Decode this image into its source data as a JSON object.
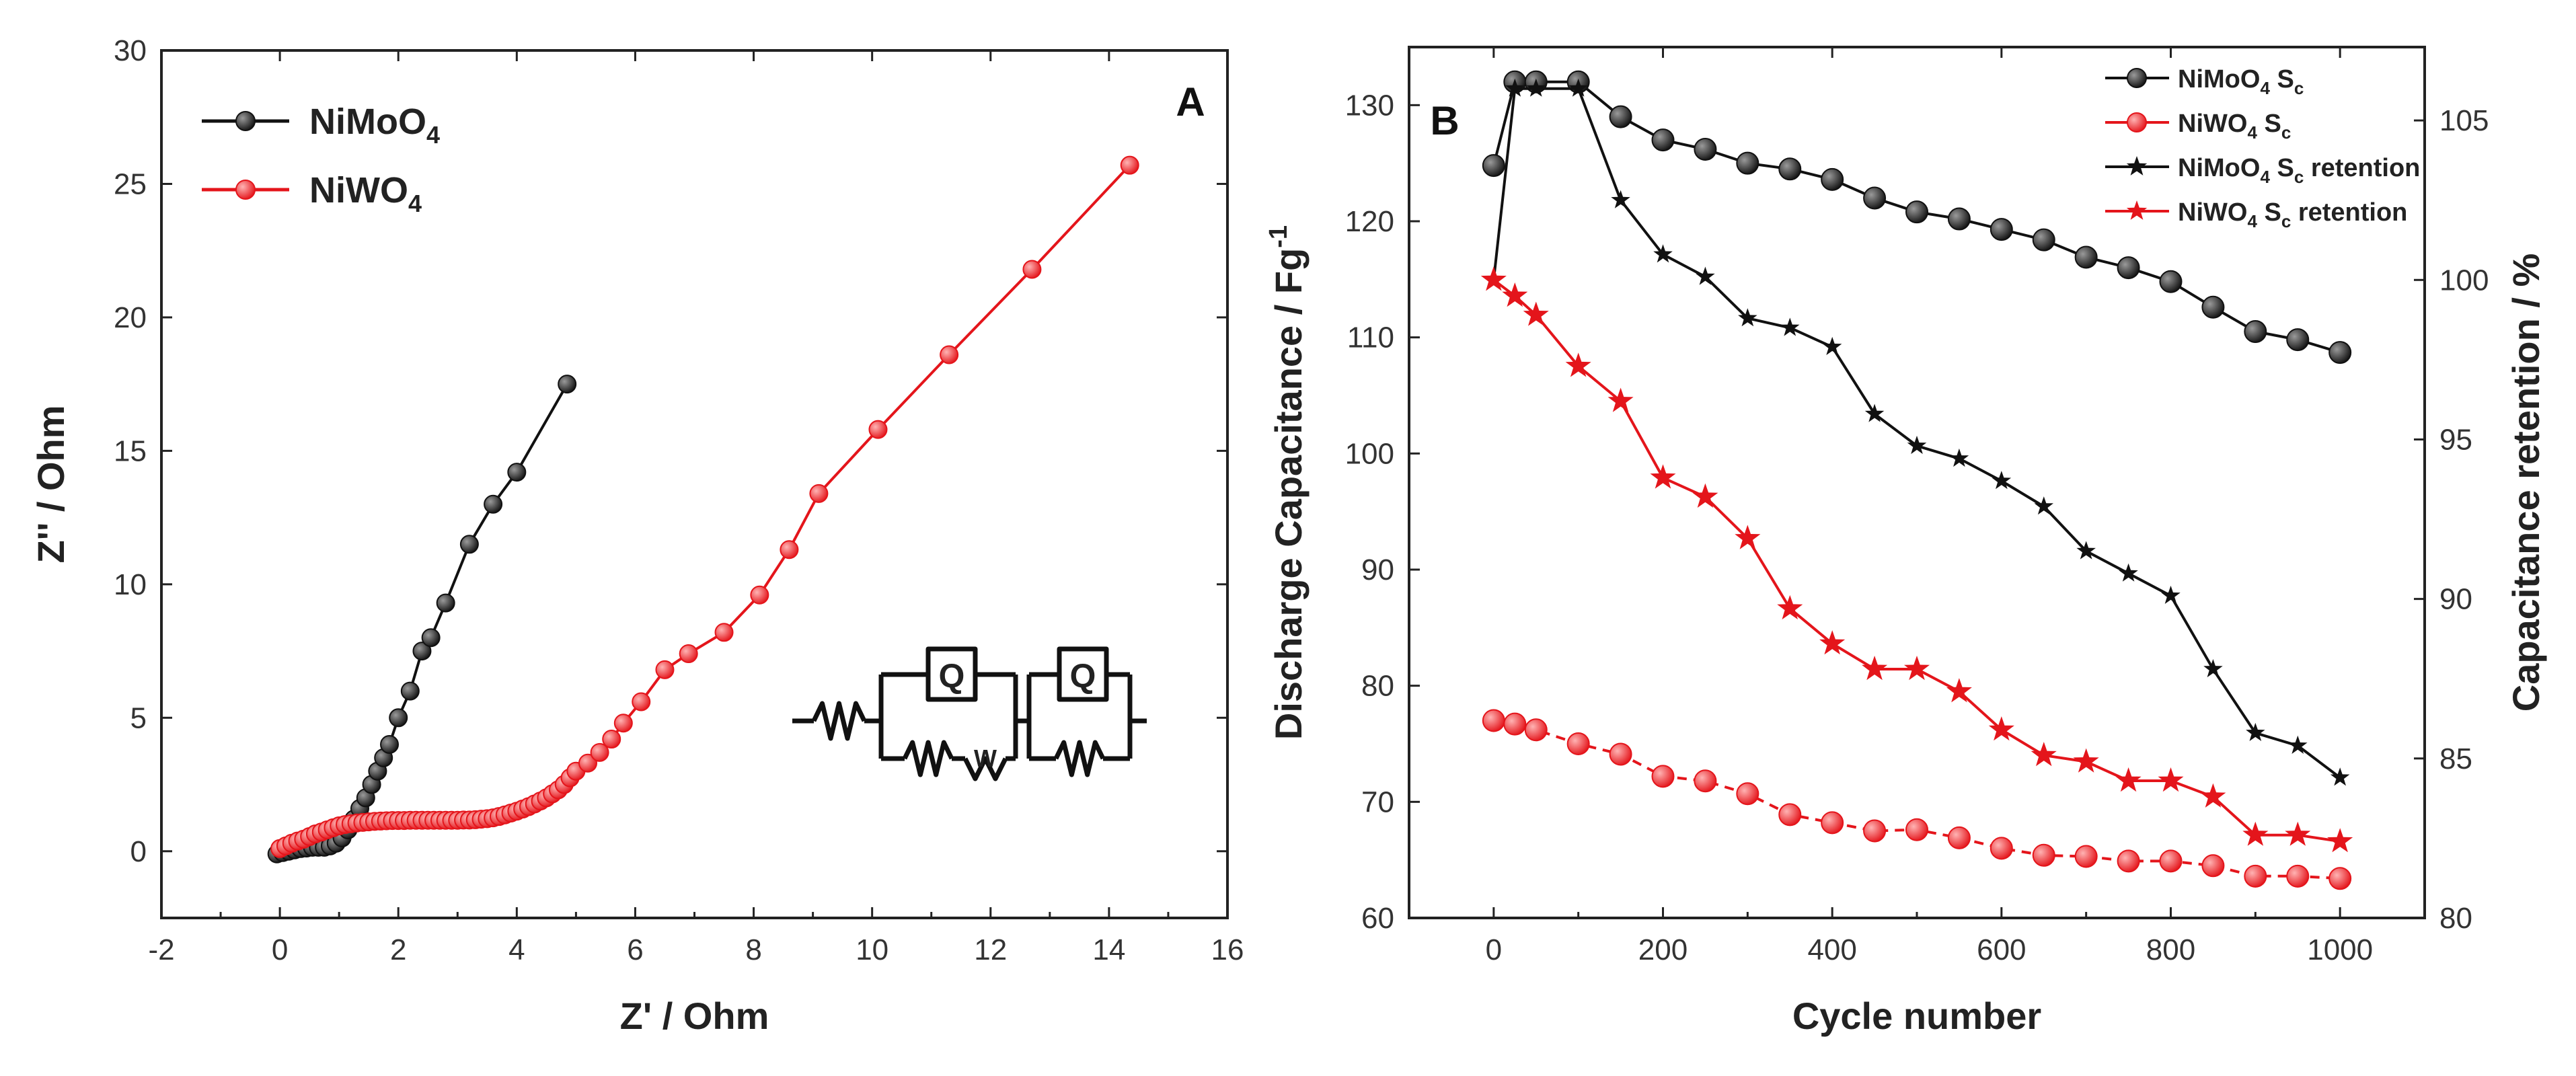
{
  "chart_data": [
    {
      "id": "A",
      "type": "line",
      "panel_label": "A",
      "xlabel": "Z' / Ohm",
      "ylabel": "Z'' / Ohm",
      "xlim": [
        -2,
        16
      ],
      "ylim": [
        -2.5,
        30
      ],
      "xticks": [
        "-2",
        "0",
        "2",
        "4",
        "6",
        "8",
        "10",
        "12",
        "14",
        "16"
      ],
      "yticks": [
        "0",
        "5",
        "10",
        "15",
        "20",
        "25",
        "30"
      ],
      "legend": {
        "placement": "top-left"
      },
      "inset": {
        "description": "equivalent circuit",
        "labels": [
          "Q",
          "W",
          "Q"
        ]
      },
      "series": [
        {
          "name": "NiMoO4",
          "name_main": "NiMoO",
          "name_sub": "4",
          "color": "#111111",
          "x": [
            -0.05,
            0.05,
            0.15,
            0.25,
            0.35,
            0.45,
            0.55,
            0.65,
            0.75,
            0.85,
            0.95,
            1.05,
            1.15,
            1.25,
            1.35,
            1.45,
            1.55,
            1.65,
            1.75,
            1.85,
            2.0,
            2.2,
            2.4,
            2.55,
            2.8,
            3.2,
            3.6,
            4.0,
            4.85
          ],
          "y": [
            -0.1,
            -0.05,
            0.0,
            0.05,
            0.1,
            0.12,
            0.15,
            0.15,
            0.15,
            0.2,
            0.3,
            0.5,
            0.8,
            1.2,
            1.6,
            2.0,
            2.5,
            3.0,
            3.5,
            4.0,
            5.0,
            6.0,
            7.5,
            8.0,
            9.3,
            11.5,
            13.0,
            14.2,
            17.5
          ]
        },
        {
          "name": "NiWO4",
          "name_main": "NiWO",
          "name_sub": "4",
          "color": "#e4151b",
          "x": [
            0.0,
            0.1,
            0.2,
            0.3,
            0.4,
            0.5,
            0.6,
            0.7,
            0.8,
            0.9,
            1.0,
            1.1,
            1.2,
            1.3,
            1.4,
            1.5,
            1.6,
            1.7,
            1.8,
            1.9,
            2.0,
            2.1,
            2.2,
            2.3,
            2.4,
            2.5,
            2.6,
            2.7,
            2.8,
            2.9,
            3.0,
            3.1,
            3.2,
            3.3,
            3.4,
            3.5,
            3.6,
            3.7,
            3.8,
            3.9,
            4.0,
            4.1,
            4.2,
            4.3,
            4.4,
            4.5,
            4.6,
            4.7,
            4.8,
            4.9,
            5.0,
            5.2,
            5.4,
            5.6,
            5.8,
            6.1,
            6.5,
            6.9,
            7.5,
            8.1,
            8.6,
            9.1,
            10.1,
            11.3,
            12.7,
            14.35
          ],
          "y": [
            0.1,
            0.2,
            0.3,
            0.38,
            0.45,
            0.55,
            0.65,
            0.72,
            0.8,
            0.88,
            0.95,
            1.0,
            1.03,
            1.06,
            1.08,
            1.1,
            1.12,
            1.13,
            1.14,
            1.15,
            1.15,
            1.15,
            1.16,
            1.16,
            1.16,
            1.16,
            1.16,
            1.16,
            1.16,
            1.16,
            1.16,
            1.17,
            1.17,
            1.18,
            1.2,
            1.22,
            1.25,
            1.3,
            1.36,
            1.43,
            1.5,
            1.58,
            1.67,
            1.77,
            1.88,
            2.0,
            2.15,
            2.3,
            2.5,
            2.75,
            3.0,
            3.3,
            3.7,
            4.2,
            4.8,
            5.6,
            6.8,
            7.4,
            8.2,
            9.6,
            11.3,
            13.4,
            15.8,
            18.6,
            21.8,
            25.7
          ]
        }
      ]
    },
    {
      "id": "B",
      "type": "line",
      "panel_label": "B",
      "xlabel": "Cycle number",
      "ylabel": "Discharge Capacitance / Fg",
      "ylabel_sup": "-1",
      "y2label": "Capacitance retention / %",
      "xlim": [
        -100,
        1100
      ],
      "ylim": [
        60,
        135
      ],
      "y2lim": [
        80,
        107.3
      ],
      "xticks": [
        "0",
        "200",
        "400",
        "600",
        "800",
        "1000"
      ],
      "yticks": [
        "60",
        "70",
        "80",
        "90",
        "100",
        "110",
        "120",
        "130"
      ],
      "y2ticks": [
        "80",
        "85",
        "90",
        "95",
        "100",
        "105"
      ],
      "legend": {
        "placement": "top-right"
      },
      "series": [
        {
          "name": "NiMoO4 Sc",
          "legend_parts": [
            "NiMoO",
            "4",
            " S",
            "c",
            ""
          ],
          "color": "#111111",
          "marker": "circle",
          "axis": "left",
          "x": [
            0,
            25,
            50,
            100,
            150,
            200,
            250,
            300,
            350,
            400,
            450,
            500,
            550,
            600,
            650,
            700,
            750,
            800,
            850,
            900,
            950,
            1000
          ],
          "y": [
            124.8,
            132,
            132,
            132,
            129,
            127,
            126.2,
            125,
            124.5,
            123.6,
            122,
            120.8,
            120.2,
            119.3,
            118.4,
            116.9,
            116,
            114.8,
            112.6,
            110.5,
            109.8,
            108.7
          ]
        },
        {
          "name": "NiWO4 Sc",
          "legend_parts": [
            "NiWO",
            "4",
            " S",
            "c",
            ""
          ],
          "color": "#e4151b",
          "marker": "circle",
          "axis": "left",
          "x": [
            0,
            25,
            50,
            100,
            150,
            200,
            250,
            300,
            350,
            400,
            450,
            500,
            550,
            600,
            650,
            700,
            750,
            800,
            850,
            900,
            950,
            1000
          ],
          "y": [
            77,
            76.7,
            76.2,
            75,
            74.1,
            72.2,
            71.8,
            70.7,
            68.9,
            68.2,
            67.5,
            67.6,
            66.9,
            66,
            65.4,
            65.3,
            64.9,
            64.9,
            64.5,
            63.6,
            63.6,
            63.4
          ]
        },
        {
          "name": "NiMoO4 Sc retention",
          "legend_parts": [
            "NiMoO",
            "4",
            " S",
            "c",
            " retention"
          ],
          "color": "#111111",
          "marker": "star",
          "axis": "right",
          "x": [
            0,
            25,
            50,
            100,
            150,
            200,
            250,
            300,
            350,
            400,
            450,
            500,
            550,
            600,
            650,
            700,
            750,
            800,
            850,
            900,
            950,
            1000
          ],
          "y": [
            100,
            106,
            106,
            106,
            102.5,
            100.8,
            100.1,
            98.8,
            98.5,
            97.9,
            95.8,
            94.8,
            94.4,
            93.7,
            92.9,
            91.5,
            90.8,
            90.1,
            87.8,
            85.8,
            85.4,
            84.4
          ]
        },
        {
          "name": "NiWO4 Sc retention",
          "legend_parts": [
            "NiWO",
            "4",
            " S",
            "c",
            " retention"
          ],
          "color": "#e4151b",
          "marker": "star",
          "axis": "right",
          "x": [
            0,
            25,
            50,
            100,
            150,
            200,
            250,
            300,
            350,
            400,
            450,
            500,
            550,
            600,
            650,
            700,
            750,
            800,
            850,
            900,
            950,
            1000
          ],
          "y": [
            100,
            99.5,
            98.9,
            97.3,
            96.2,
            93.8,
            93.2,
            91.9,
            89.7,
            88.6,
            87.8,
            87.8,
            87.1,
            85.9,
            85.1,
            84.9,
            84.3,
            84.3,
            83.8,
            82.6,
            82.6,
            82.4
          ]
        }
      ]
    }
  ]
}
